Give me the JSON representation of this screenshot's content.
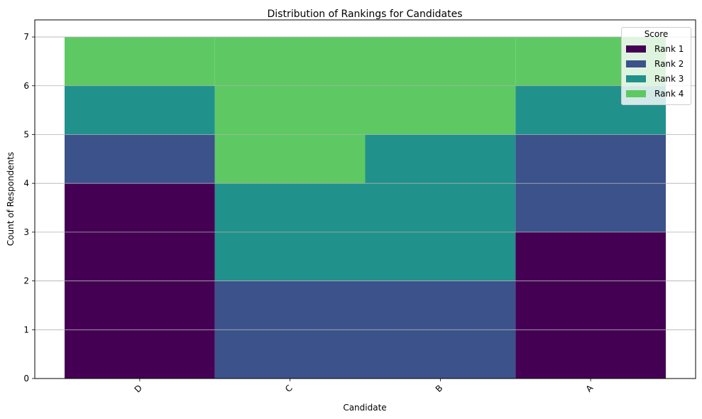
{
  "chart_data": {
    "type": "bar",
    "stacked": true,
    "title": "Distribution of Rankings for Candidates",
    "xlabel": "Candidate",
    "ylabel": "Count of Respondents",
    "categories": [
      "D",
      "C",
      "B",
      "A"
    ],
    "ylim": [
      0,
      7.35
    ],
    "yticks": [
      0,
      1,
      2,
      3,
      4,
      5,
      6,
      7
    ],
    "grid": "y",
    "legend_title": "Score",
    "legend_position": "top-right",
    "series": [
      {
        "name": "Rank 1",
        "color": "#440154",
        "values": [
          4,
          0,
          0,
          3
        ]
      },
      {
        "name": "Rank 2",
        "color": "#3b528b",
        "values": [
          1,
          2,
          2,
          2
        ]
      },
      {
        "name": "Rank 3",
        "color": "#21918c",
        "values": [
          1,
          2,
          3,
          1
        ]
      },
      {
        "name": "Rank 4",
        "color": "#5ec962",
        "values": [
          1,
          3,
          2,
          1
        ]
      }
    ]
  }
}
